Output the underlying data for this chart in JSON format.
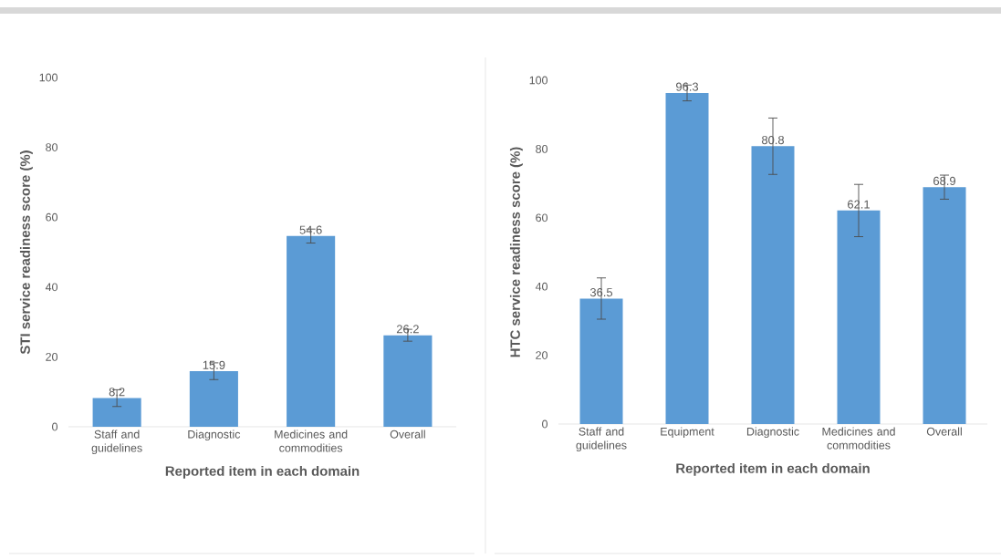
{
  "chart_data": [
    {
      "type": "bar",
      "ylabel": "STI service readiness score (%)",
      "xlabel": "Reported item in each domain",
      "categories": [
        "Staff and guidelines",
        "Diagnostic",
        "Medicines and commodities",
        "Overall"
      ],
      "values": [
        8.2,
        15.9,
        54.6,
        26.2
      ],
      "errors": [
        2.4,
        2.4,
        2,
        1.7
      ],
      "color": "#5b9bd5",
      "ylim": [
        0,
        100
      ],
      "yticks": [
        0,
        20,
        40,
        60,
        80,
        100
      ],
      "data_labels": true
    },
    {
      "type": "bar",
      "ylabel": "HTC service readiness score (%)",
      "xlabel": "Reported item in each domain",
      "categories": [
        "Staff and guidelines",
        "Equipment",
        "Diagnostic",
        "Medicines and commodities",
        "Overall"
      ],
      "values": [
        36.5,
        96.3,
        80.8,
        62.1,
        68.9
      ],
      "errors": [
        6,
        2.3,
        8.2,
        7.6,
        3.5
      ],
      "color": "#5b9bd5",
      "ylim": [
        0,
        100
      ],
      "yticks": [
        0,
        20,
        40,
        60,
        80,
        100
      ],
      "data_labels": true
    }
  ]
}
